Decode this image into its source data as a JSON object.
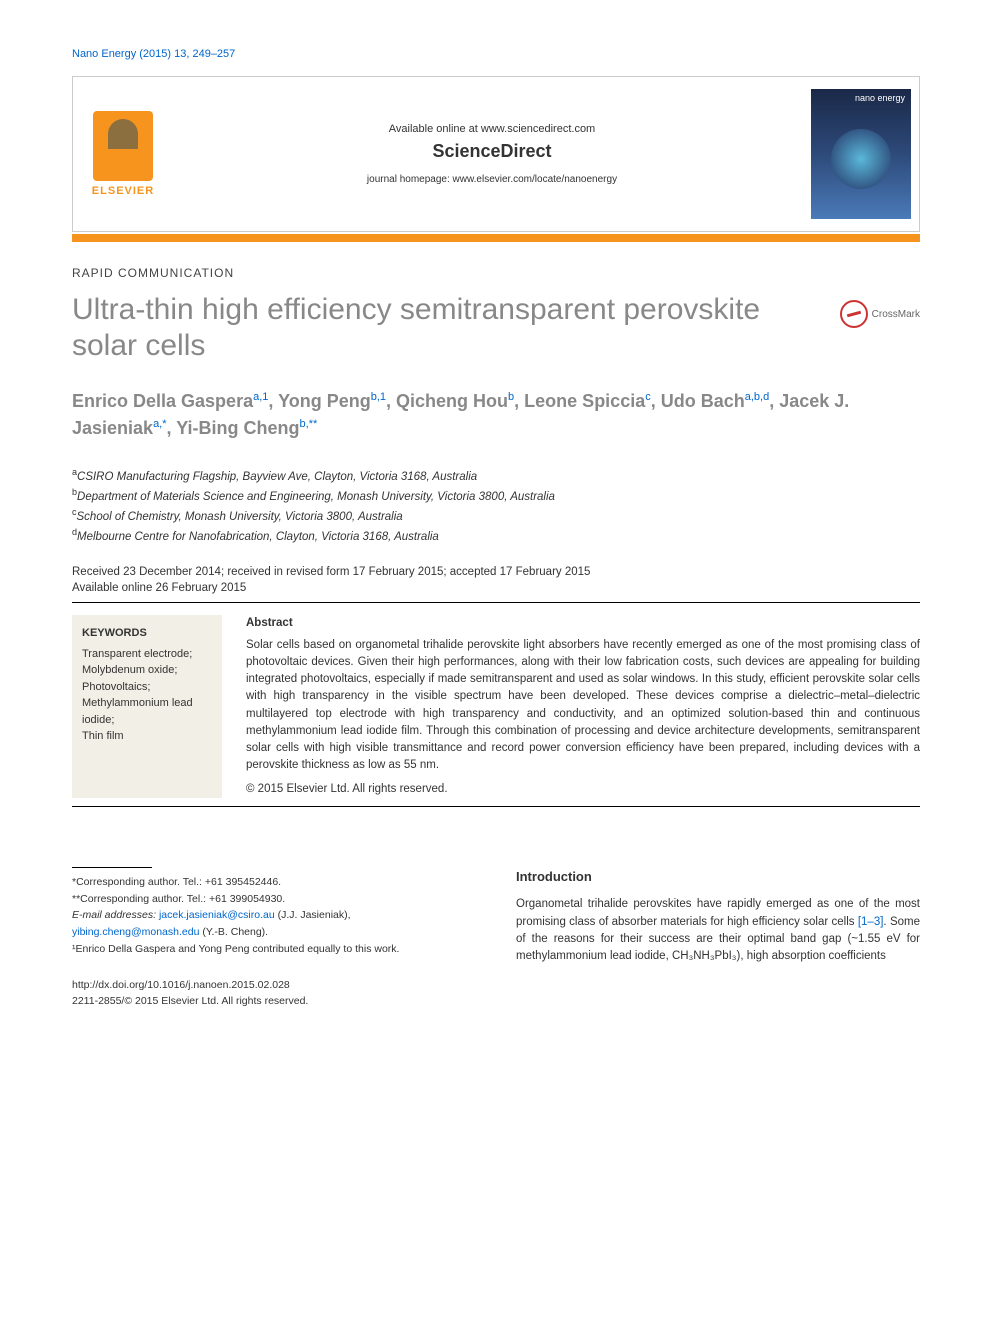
{
  "journal_ref": "Nano Energy (2015) 13, 249–257",
  "header": {
    "available": "Available online at www.sciencedirect.com",
    "brand": "ScienceDirect",
    "homepage": "journal homepage: www.elsevier.com/locate/nanoenergy",
    "publisher": "ELSEVIER",
    "cover_title": "nano energy"
  },
  "article_type": "RAPID COMMUNICATION",
  "title": "Ultra-thin high efficiency semitransparent perovskite solar cells",
  "crossmark": "CrossMark",
  "authors_html": "Enrico Della Gaspera<sup>a,1</sup>, Yong Peng<sup>b,1</sup>, Qicheng Hou<sup>b</sup>, Leone Spiccia<sup>c</sup>, Udo Bach<sup>a,b,d</sup>, Jacek J. Jasieniak<sup>a,*</sup>, Yi-Bing Cheng<sup>b,**</sup>",
  "affiliations": [
    {
      "sup": "a",
      "text": "CSIRO Manufacturing Flagship, Bayview Ave, Clayton, Victoria 3168, Australia"
    },
    {
      "sup": "b",
      "text": "Department of Materials Science and Engineering, Monash University, Victoria 3800, Australia"
    },
    {
      "sup": "c",
      "text": "School of Chemistry, Monash University, Victoria 3800, Australia"
    },
    {
      "sup": "d",
      "text": "Melbourne Centre for Nanofabrication, Clayton, Victoria 3168, Australia"
    }
  ],
  "dates": {
    "received": "Received 23 December 2014; received in revised form 17 February 2015; accepted 17 February 2015",
    "online": "Available online 26 February 2015"
  },
  "keywords": {
    "title": "KEYWORDS",
    "items": "Transparent electrode;\nMolybdenum oxide;\nPhotovoltaics;\nMethylammonium lead iodide;\nThin film"
  },
  "abstract": {
    "title": "Abstract",
    "body": "Solar cells based on organometal trihalide perovskite light absorbers have recently emerged as one of the most promising class of photovoltaic devices. Given their high performances, along with their low fabrication costs, such devices are appealing for building integrated photovoltaics, especially if made semitransparent and used as solar windows. In this study, efficient perovskite solar cells with high transparency in the visible spectrum have been developed. These devices comprise a dielectric–metal–dielectric multilayered top electrode with high transparency and conductivity, and an optimized solution-based thin and continuous methylammonium lead iodide film. Through this combination of processing and device architecture developments, semitransparent solar cells with high visible transmittance and record power conversion efficiency have been prepared, including devices with a perovskite thickness as low as 55 nm.",
    "copyright": "© 2015 Elsevier Ltd. All rights reserved."
  },
  "footnotes": {
    "corr1": "*Corresponding author. Tel.: +61 395452446.",
    "corr2": "**Corresponding author. Tel.: +61 399054930.",
    "email_label": "E-mail addresses:",
    "email1": "jacek.jasieniak@csiro.au",
    "email1_name": " (J.J. Jasieniak),",
    "email2": "yibing.cheng@monash.edu",
    "email2_name": " (Y.-B. Cheng).",
    "equal": "¹Enrico Della Gaspera and Yong Peng contributed equally to this work."
  },
  "intro": {
    "title": "Introduction",
    "body_pre": "Organometal trihalide perovskites have rapidly emerged as one of the most promising class of absorber materials for high efficiency solar cells ",
    "ref": "[1–3]",
    "body_post": ". Some of the reasons for their success are their optimal band gap (~1.55 eV for methylammonium lead iodide, CH₃NH₃PbI₃), high absorption coefficients"
  },
  "doi": {
    "url": "http://dx.doi.org/10.1016/j.nanoen.2015.02.028",
    "issn": "2211-2855/© 2015 Elsevier Ltd. All rights reserved."
  },
  "colors": {
    "link": "#0066cc",
    "orange": "#f7941e",
    "title_gray": "#888888"
  }
}
